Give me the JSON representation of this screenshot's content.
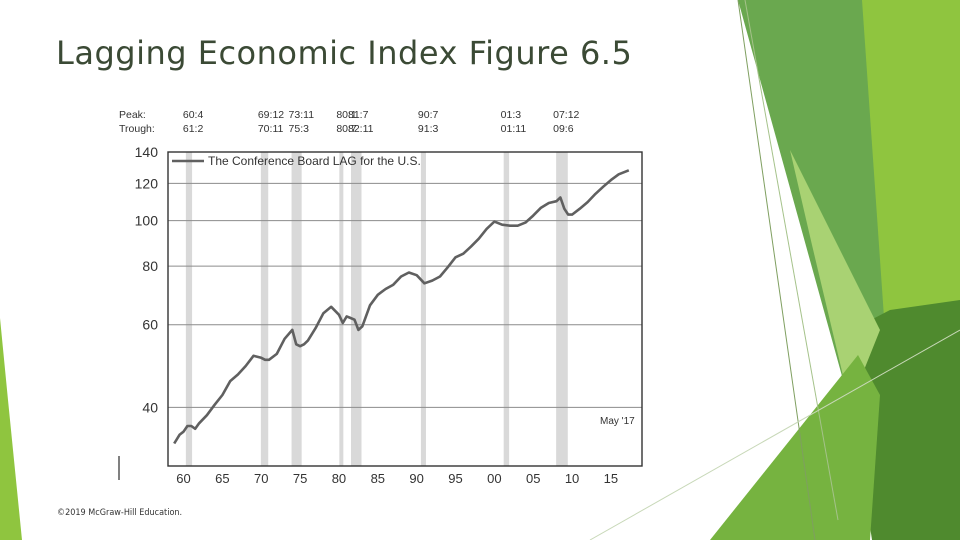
{
  "slide": {
    "title": "Lagging Economic Index Figure 6.5",
    "copyright": "©2019 McGraw-Hill Education."
  },
  "colors": {
    "accent_dark": "#4f8a2e",
    "accent_mid": "#6aa84f",
    "accent_light": "#8fc53f",
    "accent_pale": "#cfe6a8",
    "title_text": "#3b4a35",
    "recession_band": "#d9d9d9",
    "line": "#606060"
  },
  "chart_data": {
    "type": "line",
    "legend": "The Conference Board LAG for the U.S.",
    "note": "May '17",
    "peak_label": "Peak:",
    "trough_label": "Trough:",
    "y_scale": "log",
    "ylim": [
      30,
      140
    ],
    "y_ticks": [
      40,
      60,
      80,
      100,
      120,
      140
    ],
    "xlim": [
      1958,
      2019
    ],
    "x_ticks": [
      "60",
      "65",
      "70",
      "75",
      "80",
      "85",
      "90",
      "95",
      "00",
      "05",
      "10",
      "15"
    ],
    "x_tick_years": [
      1960,
      1965,
      1970,
      1975,
      1980,
      1985,
      1990,
      1995,
      2000,
      2005,
      2010,
      2015
    ],
    "grid": true,
    "recessions": [
      {
        "peak": "60:4",
        "trough": "61:2",
        "start": 1960.3,
        "end": 1961.1
      },
      {
        "peak": "69:12",
        "trough": "70:11",
        "start": 1969.95,
        "end": 1970.9
      },
      {
        "peak": "73:11",
        "trough": "75:3",
        "start": 1973.9,
        "end": 1975.2
      },
      {
        "peak": "80:1",
        "trough": "80:7",
        "start": 1980.05,
        "end": 1980.55
      },
      {
        "peak": "81:7",
        "trough": "82:11",
        "start": 1981.55,
        "end": 1982.9
      },
      {
        "peak": "90:7",
        "trough": "91:3",
        "start": 1990.55,
        "end": 1991.2
      },
      {
        "peak": "01:3",
        "trough": "01:11",
        "start": 2001.2,
        "end": 2001.9
      },
      {
        "peak": "07:12",
        "trough": "09:6",
        "start": 2007.95,
        "end": 2009.45
      }
    ],
    "series": [
      {
        "x": [
          1958.8,
          1959.5,
          1960,
          1960.5,
          1961,
          1961.5,
          1962,
          1963,
          1964,
          1965,
          1966,
          1967,
          1968,
          1969,
          1970,
          1970.5,
          1971,
          1972,
          1973,
          1974,
          1974.5,
          1975,
          1975.5,
          1976,
          1977,
          1978,
          1979,
          1980,
          1980.5,
          1981,
          1981.5,
          1982,
          1982.5,
          1983,
          1984,
          1985,
          1986,
          1987,
          1988,
          1989,
          1990,
          1991,
          1992,
          1993,
          1994,
          1995,
          1996,
          1997,
          1998,
          1999,
          2000,
          2001,
          2002,
          2003,
          2004,
          2005,
          2006,
          2007,
          2008,
          2008.5,
          2009,
          2009.5,
          2010,
          2011,
          2012,
          2013,
          2014,
          2015,
          2016,
          2017.3
        ],
        "values": [
          33.5,
          35,
          35.5,
          36.5,
          36.5,
          36,
          37,
          38.5,
          40.5,
          42.5,
          45.5,
          47,
          49,
          51.5,
          51,
          50.5,
          50.5,
          52,
          56,
          58.5,
          54.5,
          54,
          54.5,
          55.5,
          59,
          63.5,
          65.5,
          63,
          60.5,
          62.5,
          62,
          61.5,
          58.5,
          59.5,
          66,
          69.5,
          71.5,
          73,
          76,
          77.5,
          76.5,
          73.5,
          74.5,
          76,
          79.5,
          83.5,
          85,
          88,
          91.5,
          96,
          99.5,
          98,
          97.5,
          97.5,
          99,
          102.5,
          106.5,
          109,
          110,
          112,
          106,
          103,
          103,
          106,
          109.5,
          114,
          118,
          122,
          125.5,
          128
        ]
      }
    ]
  }
}
